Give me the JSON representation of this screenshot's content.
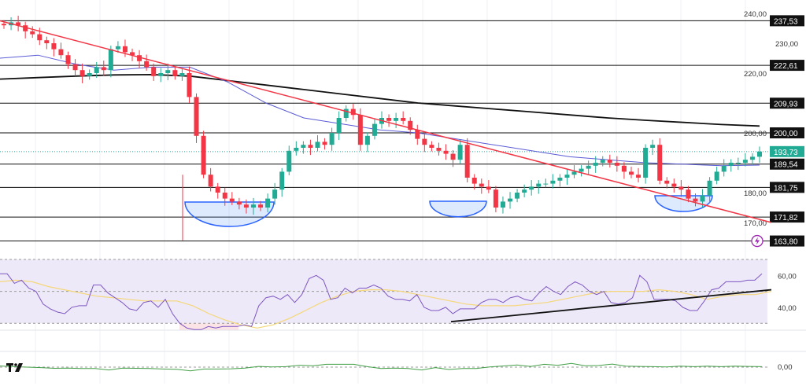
{
  "chart_data": {
    "type": "candlestick",
    "ylim": [
      160,
      241
    ],
    "y_ticks": [
      "240,00",
      "230,00",
      "220,00",
      "200,00",
      "180,00",
      "170,00"
    ],
    "levels": [
      {
        "value": 237.53,
        "label": "237,53"
      },
      {
        "value": 222.61,
        "label": "222,61"
      },
      {
        "value": 209.93,
        "label": "209,93"
      },
      {
        "value": 200.0,
        "label": "200,00"
      },
      {
        "value": 189.54,
        "label": "189,54"
      },
      {
        "value": 181.75,
        "label": "181,75"
      },
      {
        "value": 171.82,
        "label": "171,82"
      },
      {
        "value": 163.8,
        "label": "163,80"
      }
    ],
    "last_price": {
      "value": 193.73,
      "label": "193,73"
    },
    "closes": [
      236,
      237,
      236,
      234,
      233,
      231,
      230,
      228,
      226,
      223,
      221,
      219,
      220,
      222,
      221,
      228,
      229,
      227,
      226,
      224,
      222,
      219,
      220,
      221,
      219,
      220,
      212,
      199,
      186,
      182,
      180,
      178,
      177,
      176,
      175,
      176,
      175,
      178,
      181,
      187,
      194,
      195,
      196,
      195,
      197,
      196,
      200,
      205,
      208,
      206,
      196,
      199,
      203,
      205,
      204,
      205,
      204,
      201,
      198,
      196,
      195,
      194,
      193,
      191,
      196,
      185,
      183,
      182,
      181,
      175,
      177,
      178,
      180,
      181,
      182,
      183,
      183,
      184,
      185,
      186,
      187,
      188,
      189,
      190,
      191,
      190,
      189,
      187,
      186,
      185,
      195,
      196,
      184,
      183,
      182,
      181,
      178,
      177,
      179,
      184,
      187,
      189,
      190,
      190,
      191,
      192,
      193.73
    ],
    "ma_long": [
      218,
      218.5,
      219,
      219.4,
      219.5,
      219,
      217.5,
      216,
      214.5,
      213,
      211.5,
      210,
      209,
      208,
      207,
      206,
      205,
      204.2,
      203.5,
      202.8,
      202.3
    ],
    "ma_short": [
      225,
      226,
      223,
      221,
      222,
      222,
      217,
      210,
      205,
      203,
      201,
      200,
      198,
      196,
      194,
      192,
      191,
      190,
      189.5,
      189,
      189.2
    ],
    "trendline": {
      "from": 237.5,
      "to": 170
    },
    "rsi": {
      "levels": [
        "60,00",
        "40,00"
      ],
      "values": [
        61,
        61,
        55,
        57,
        52,
        50,
        42,
        39,
        37,
        36,
        40,
        41,
        41,
        54,
        54,
        49,
        46,
        43,
        39,
        38,
        43,
        44,
        40,
        45,
        36,
        30,
        27,
        26,
        26,
        28,
        27,
        28,
        28,
        28,
        29,
        28,
        41,
        46,
        47,
        45,
        48,
        43,
        48,
        58,
        60,
        57,
        45,
        46,
        52,
        49,
        52,
        52,
        54,
        52,
        47,
        45,
        45,
        44,
        48,
        40,
        38,
        38,
        40,
        36,
        39,
        39,
        39,
        43,
        45,
        45,
        43,
        46,
        47,
        45,
        44,
        49,
        53,
        50,
        48,
        53,
        56,
        54,
        50,
        48,
        50,
        43,
        42,
        43,
        46,
        60,
        56,
        45,
        45,
        45,
        44,
        40,
        38,
        38,
        44,
        51,
        52,
        56,
        56,
        56,
        57,
        57,
        61
      ],
      "ma": [
        56,
        57,
        56,
        53,
        51,
        49,
        47,
        46,
        45,
        44,
        44,
        44,
        41,
        36,
        32,
        29,
        27,
        29,
        33,
        38,
        43,
        47,
        50,
        51,
        51,
        50,
        48,
        46,
        44,
        42,
        41,
        41,
        41,
        42,
        43,
        45,
        47,
        49,
        50,
        50,
        50,
        51,
        50,
        48,
        45,
        47,
        48,
        48,
        50
      ]
    },
    "oscillator": {
      "zero_label": "0,00",
      "values": [
        0.5,
        0.2,
        0,
        -0.2,
        -0.5,
        -0.4,
        -0.6,
        -0.6,
        -1.2,
        -0.4,
        -0.5,
        -0.6,
        -0.8,
        -0.9,
        -1.6,
        -0.8,
        -0.8,
        -0.7,
        -0.4,
        0.3,
        0.1,
        0.2,
        0.8,
        0.6,
        1.2,
        1.2,
        1.2,
        0.2,
        -0.6,
        -0.4,
        -0.6,
        -1.2,
        -0.2,
        -1,
        -0.6,
        -0.6,
        0.1,
        0.5,
        0.9,
        0.3,
        1.2,
        0.8,
        1.6,
        0.6,
        0.7,
        1.3,
        0.4,
        0.3,
        0.2,
        0.1,
        0.4,
        0.2,
        0.4,
        0.2,
        0.4,
        0.3,
        0.2
      ]
    }
  },
  "logo": "TV"
}
